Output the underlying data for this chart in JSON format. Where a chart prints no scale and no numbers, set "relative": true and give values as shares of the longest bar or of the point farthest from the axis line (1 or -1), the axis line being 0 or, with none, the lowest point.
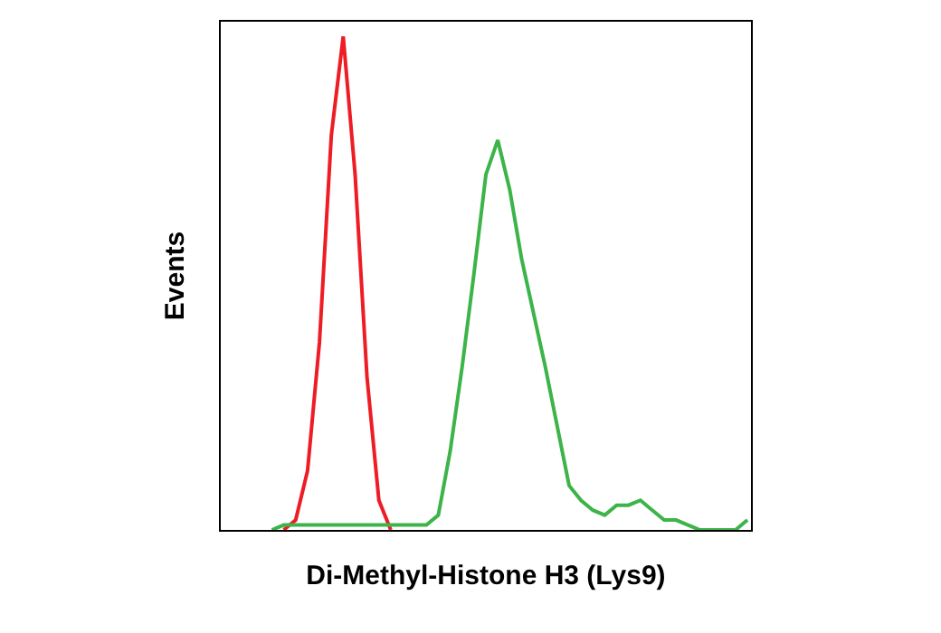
{
  "chart_data": {
    "type": "line",
    "relative": true,
    "xlabel": "Di-Methyl-Histone H3 (Lys9)",
    "ylabel": "Events",
    "tick_labels": false,
    "marker": "none",
    "line_style": "solid",
    "categories": [
      null,
      null,
      null,
      null,
      null,
      null,
      null,
      null,
      null,
      null,
      null,
      null,
      null,
      null,
      null,
      null,
      null,
      null,
      null,
      null,
      null,
      null,
      null,
      null,
      null,
      null,
      null,
      null,
      null,
      null,
      null,
      null,
      null,
      null,
      null,
      null,
      null,
      null,
      null,
      null,
      null,
      null,
      null,
      null,
      null
    ],
    "series": [
      {
        "color": "#ee1c25",
        "values": [
          null,
          null,
          null,
          null,
          null,
          0,
          0.02,
          0.12,
          0.38,
          0.8,
          1.0,
          0.72,
          0.31,
          0.06,
          0,
          null,
          null,
          null,
          null,
          null,
          null,
          null,
          null,
          null,
          null,
          null,
          null,
          null,
          null,
          null,
          null,
          null,
          null,
          null,
          null,
          null,
          null,
          null,
          null,
          null,
          null,
          null,
          null,
          null,
          null
        ]
      },
      {
        "color": "#3cb44a",
        "values": [
          null,
          null,
          null,
          null,
          0.0,
          0.01,
          0.01,
          0.01,
          0.01,
          0.01,
          0.01,
          0.01,
          0.01,
          0.01,
          0.01,
          0.01,
          0.01,
          0.01,
          0.03,
          0.16,
          0.33,
          0.52,
          0.72,
          0.79,
          0.69,
          0.55,
          0.44,
          0.33,
          0.21,
          0.09,
          0.06,
          0.04,
          0.03,
          0.05,
          0.05,
          0.06,
          0.04,
          0.02,
          0.02,
          0.01,
          0,
          0,
          0,
          0,
          0.02
        ]
      }
    ]
  }
}
